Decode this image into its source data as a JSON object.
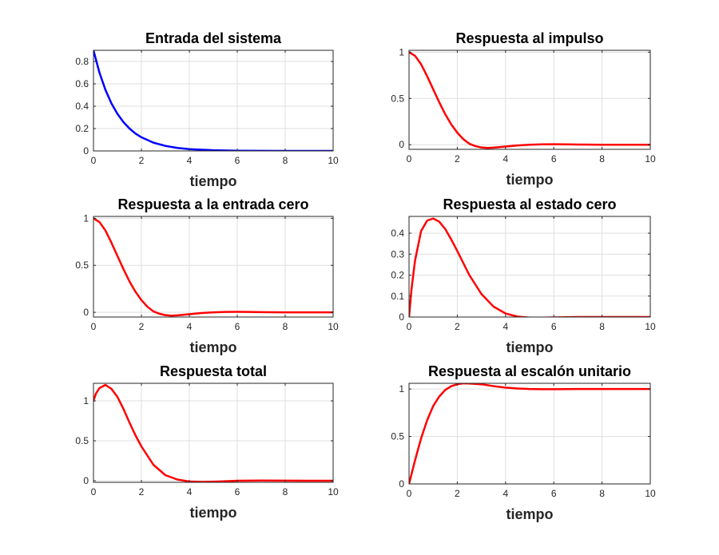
{
  "figure": {
    "background": "#ffffff"
  },
  "chart_data": [
    {
      "type": "line",
      "title": "Entrada del sistema",
      "xlabel": "tiempo",
      "ylabel": "",
      "xlim": [
        0,
        10
      ],
      "ylim": [
        0,
        0.9
      ],
      "xticks": [
        0,
        2,
        4,
        6,
        8,
        10
      ],
      "yticks": [
        0,
        0.2,
        0.4,
        0.6,
        0.8
      ],
      "xtick_labels": [
        "0",
        "2",
        "4",
        "6",
        "8",
        "10"
      ],
      "ytick_labels": [
        "0",
        "0.2",
        "0.4",
        "0.6",
        "0.8"
      ],
      "grid": true,
      "series": [
        {
          "name": "Entrada del sistema",
          "color": "#0000ff",
          "x": [
            0,
            0.25,
            0.5,
            0.75,
            1,
            1.25,
            1.5,
            1.75,
            2,
            2.5,
            3,
            3.5,
            4,
            5,
            6,
            7,
            8,
            9,
            10
          ],
          "y": [
            0.9,
            0.7,
            0.546,
            0.425,
            0.331,
            0.258,
            0.201,
            0.156,
            0.122,
            0.074,
            0.045,
            0.027,
            0.016,
            0.006,
            0.002,
            0.001,
            0.0003,
            0.0001,
            0.0
          ]
        }
      ]
    },
    {
      "type": "line",
      "title": "Respuesta al impulso",
      "xlabel": "tiempo",
      "ylabel": "",
      "xlim": [
        0,
        10
      ],
      "ylim": [
        -0.05,
        1.02
      ],
      "xticks": [
        0,
        2,
        4,
        6,
        8,
        10
      ],
      "yticks": [
        0,
        0.5,
        1
      ],
      "xtick_labels": [
        "0",
        "2",
        "4",
        "6",
        "8",
        "10"
      ],
      "ytick_labels": [
        "0",
        "0.5",
        "1"
      ],
      "grid": true,
      "series": [
        {
          "name": "Respuesta al impulso",
          "color": "#ff0000",
          "x": [
            0,
            0.25,
            0.5,
            0.75,
            1,
            1.25,
            1.5,
            1.75,
            2,
            2.25,
            2.5,
            2.75,
            3,
            3.25,
            3.5,
            4,
            4.5,
            5,
            5.5,
            6,
            6.5,
            7,
            8,
            9,
            10
          ],
          "y": [
            1.0,
            0.96,
            0.87,
            0.74,
            0.6,
            0.46,
            0.33,
            0.22,
            0.13,
            0.06,
            0.01,
            -0.015,
            -0.03,
            -0.035,
            -0.032,
            -0.02,
            -0.008,
            0.0,
            0.004,
            0.005,
            0.004,
            0.002,
            0.0,
            0.0,
            0.0
          ]
        }
      ]
    },
    {
      "type": "line",
      "title": "Respuesta a la entrada cero",
      "xlabel": "tiempo",
      "ylabel": "",
      "xlim": [
        0,
        10
      ],
      "ylim": [
        -0.05,
        1.02
      ],
      "xticks": [
        0,
        2,
        4,
        6,
        8,
        10
      ],
      "yticks": [
        0,
        0.5,
        1
      ],
      "xtick_labels": [
        "0",
        "2",
        "4",
        "6",
        "8",
        "10"
      ],
      "ytick_labels": [
        "0",
        "0.5",
        "1"
      ],
      "grid": true,
      "series": [
        {
          "name": "Respuesta a la entrada cero",
          "color": "#ff0000",
          "x": [
            0,
            0.25,
            0.5,
            0.75,
            1,
            1.25,
            1.5,
            1.75,
            2,
            2.25,
            2.5,
            2.75,
            3,
            3.25,
            3.5,
            4,
            4.5,
            5,
            5.5,
            6,
            6.5,
            7,
            8,
            9,
            10
          ],
          "y": [
            1.0,
            0.96,
            0.87,
            0.74,
            0.6,
            0.46,
            0.33,
            0.22,
            0.13,
            0.06,
            0.01,
            -0.015,
            -0.03,
            -0.035,
            -0.032,
            -0.02,
            -0.008,
            0.0,
            0.004,
            0.005,
            0.004,
            0.002,
            0.0,
            0.0,
            0.0
          ]
        }
      ]
    },
    {
      "type": "line",
      "title": "Respuesta al estado cero",
      "xlabel": "tiempo",
      "ylabel": "",
      "xlim": [
        0,
        10
      ],
      "ylim": [
        0,
        0.48
      ],
      "xticks": [
        0,
        2,
        4,
        6,
        8,
        10
      ],
      "yticks": [
        0,
        0.1,
        0.2,
        0.3,
        0.4
      ],
      "xtick_labels": [
        "0",
        "2",
        "4",
        "6",
        "8",
        "10"
      ],
      "ytick_labels": [
        "0",
        "0.1",
        "0.2",
        "0.3",
        "0.4"
      ],
      "grid": true,
      "series": [
        {
          "name": "Respuesta al estado cero",
          "color": "#ff0000",
          "x": [
            0,
            0.1,
            0.25,
            0.5,
            0.75,
            1,
            1.25,
            1.5,
            1.75,
            2,
            2.5,
            3,
            3.5,
            4,
            4.5,
            5,
            5.5,
            6,
            7,
            8,
            9,
            10
          ],
          "y": [
            0.0,
            0.13,
            0.27,
            0.41,
            0.46,
            0.47,
            0.455,
            0.42,
            0.37,
            0.315,
            0.2,
            0.11,
            0.05,
            0.017,
            0.002,
            -0.003,
            -0.003,
            -0.002,
            0.0,
            0.0,
            0.0,
            0.0
          ]
        }
      ]
    },
    {
      "type": "line",
      "title": "Respuesta total",
      "xlabel": "tiempo",
      "ylabel": "",
      "xlim": [
        0,
        10
      ],
      "ylim": [
        -0.02,
        1.22
      ],
      "xticks": [
        0,
        2,
        4,
        6,
        8,
        10
      ],
      "yticks": [
        0,
        0.5,
        1
      ],
      "xtick_labels": [
        "0",
        "2",
        "4",
        "6",
        "8",
        "10"
      ],
      "ytick_labels": [
        "0",
        "0.5",
        "1"
      ],
      "grid": true,
      "series": [
        {
          "name": "Respuesta total",
          "color": "#ff0000",
          "x": [
            0,
            0.1,
            0.25,
            0.5,
            0.75,
            1,
            1.25,
            1.5,
            1.75,
            2,
            2.5,
            3,
            3.5,
            4,
            4.5,
            5,
            5.5,
            6,
            7,
            8,
            9,
            10
          ],
          "y": [
            1.0,
            1.09,
            1.16,
            1.2,
            1.15,
            1.05,
            0.9,
            0.73,
            0.57,
            0.43,
            0.2,
            0.07,
            0.015,
            -0.01,
            -0.015,
            -0.012,
            -0.006,
            0.0,
            0.002,
            0.001,
            0.0,
            0.0
          ]
        }
      ]
    },
    {
      "type": "line",
      "title": "Respuesta al escalón unitario",
      "xlabel": "tiempo",
      "ylabel": "",
      "xlim": [
        0,
        10
      ],
      "ylim": [
        0,
        1.06
      ],
      "xticks": [
        0,
        2,
        4,
        6,
        8,
        10
      ],
      "yticks": [
        0,
        0.5,
        1
      ],
      "xtick_labels": [
        "0",
        "2",
        "4",
        "6",
        "8",
        "10"
      ],
      "ytick_labels": [
        "0",
        "0.5",
        "1"
      ],
      "grid": true,
      "series": [
        {
          "name": "Respuesta al escalón unitario",
          "color": "#ff0000",
          "x": [
            0,
            0.25,
            0.5,
            0.75,
            1,
            1.25,
            1.5,
            1.75,
            2,
            2.25,
            2.5,
            3,
            3.5,
            4,
            4.5,
            5,
            5.5,
            6,
            7,
            8,
            9,
            10
          ],
          "y": [
            0.0,
            0.25,
            0.48,
            0.67,
            0.82,
            0.92,
            0.99,
            1.03,
            1.05,
            1.06,
            1.058,
            1.05,
            1.03,
            1.015,
            1.005,
            1.0,
            0.998,
            0.998,
            1.0,
            1.0,
            1.0,
            1.0
          ]
        }
      ]
    }
  ]
}
